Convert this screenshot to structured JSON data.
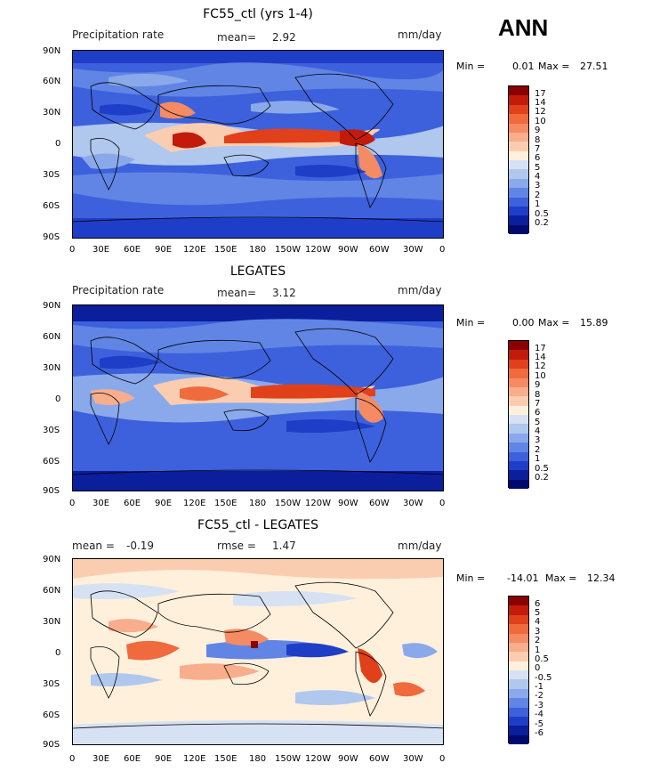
{
  "season": "ANN",
  "panels": [
    {
      "title": "FC55_ctl (yrs 1-4)",
      "left_label": "Precipitation rate",
      "stat1_label": "mean=",
      "stat1_value": "2.92",
      "units": "mm/day",
      "min_label": "Min =",
      "min_value": "0.01",
      "max_label": "Max =",
      "max_value": "27.51"
    },
    {
      "title": "LEGATES",
      "left_label": "Precipitation rate",
      "stat1_label": "mean=",
      "stat1_value": "3.12",
      "units": "mm/day",
      "min_label": "Min =",
      "min_value": "0.00",
      "max_label": "Max =",
      "max_value": "15.89"
    },
    {
      "title": "FC55_ctl - LEGATES",
      "left_label": "mean =",
      "left_value": "-0.19",
      "stat1_label": "rmse =",
      "stat1_value": "1.47",
      "units": "mm/day",
      "min_label": "Min =",
      "min_value": "-14.01",
      "max_label": "Max =",
      "max_value": "12.34"
    }
  ],
  "lat_ticks": [
    "90N",
    "60N",
    "30N",
    "0",
    "30S",
    "60S",
    "90S"
  ],
  "lon_ticks": [
    "0",
    "30E",
    "60E",
    "90E",
    "120E",
    "150E",
    "180",
    "150W",
    "120W",
    "90W",
    "60W",
    "30W",
    "0"
  ],
  "colorbar_precip": {
    "labels": [
      "17",
      "14",
      "12",
      "10",
      "9",
      "8",
      "7",
      "6",
      "5",
      "4",
      "3",
      "2",
      "1",
      "0.5",
      "0.2"
    ],
    "colors": [
      "#8b0000",
      "#c21b0b",
      "#e0401a",
      "#ef6a3c",
      "#f48b63",
      "#f8ad8c",
      "#fbcdb0",
      "#fff0dc",
      "#d6e2f3",
      "#b0c7ee",
      "#8aa9ea",
      "#6085e4",
      "#3d61dc",
      "#1e3ec8",
      "#0b1e9c",
      "#000a6e"
    ]
  },
  "colorbar_diff": {
    "labels": [
      "6",
      "5",
      "4",
      "3",
      "2",
      "1",
      "0.5",
      "0",
      "-0.5",
      "-1",
      "-2",
      "-3",
      "-4",
      "-5",
      "-6"
    ],
    "colors": [
      "#8b0000",
      "#c21b0b",
      "#e0401a",
      "#ef6a3c",
      "#f48b63",
      "#f8ad8c",
      "#fbcdb0",
      "#fff0dc",
      "#d6e2f3",
      "#b0c7ee",
      "#8aa9ea",
      "#6085e4",
      "#3d61dc",
      "#1e3ec8",
      "#0b1e9c",
      "#000a6e"
    ]
  }
}
